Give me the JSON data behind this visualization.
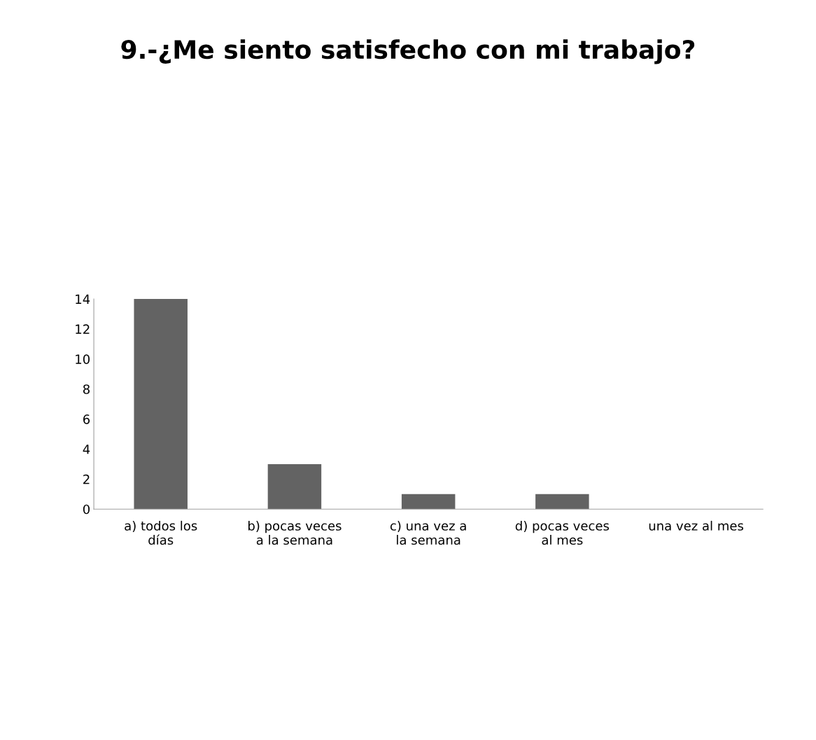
{
  "chart_data": {
    "type": "bar",
    "title": "9.-¿Me siento satisfecho con mi trabajo?",
    "categories": [
      "a) todos los días",
      "b) pocas veces a la semana",
      "c) una vez a la semana",
      "d) pocas veces al mes",
      "una vez al mes"
    ],
    "values": [
      14,
      3,
      1,
      1,
      0
    ],
    "color": "#636363",
    "ylim": [
      0,
      14
    ],
    "yticks": [
      0,
      2,
      4,
      6,
      8,
      10,
      12,
      14
    ],
    "grid": false,
    "legend": false
  }
}
